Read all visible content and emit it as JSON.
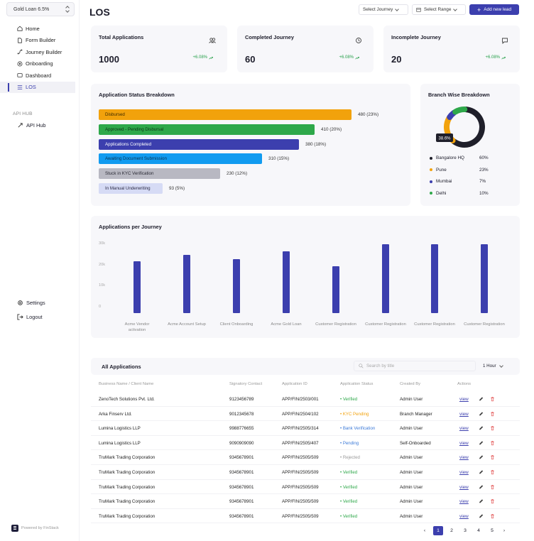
{
  "sidebar": {
    "loan_selector": "Gold Loan 6.5%",
    "nav": [
      {
        "label": "Home",
        "icon": "home-icon"
      },
      {
        "label": "Form Builder",
        "icon": "file-icon"
      },
      {
        "label": "Journey Builder",
        "icon": "route-icon"
      },
      {
        "label": "Onboarding",
        "icon": "onboarding-icon"
      },
      {
        "label": "Dashboard",
        "icon": "dashboard-icon"
      },
      {
        "label": "LOS",
        "icon": "list-icon",
        "active": true
      }
    ],
    "api_hub_heading": "API HUB",
    "api_hub_item": "API Hub",
    "settings": "Settings",
    "logout": "Logout",
    "powered_by": "Powered by FinStack"
  },
  "header": {
    "title": "LOS",
    "select_journey": "Select Journey",
    "select_range": "Select Range",
    "add_lead": "Add new lead"
  },
  "stats": [
    {
      "title": "Total Applications",
      "value": "1000",
      "change": "+6.08%"
    },
    {
      "title": "Completed Journey",
      "value": "60",
      "change": "+6.08%"
    },
    {
      "title": "Incomplete Journey",
      "value": "20",
      "change": "+6.08%"
    }
  ],
  "status_breakdown": {
    "title": "Application Status Breakdown",
    "items": [
      {
        "label": "Disbursed",
        "value": "480 (23%)",
        "count": 480,
        "color": "#f2a20c",
        "text_color": "#3b2a00"
      },
      {
        "label": "Approved - Pending Disbursal",
        "value": "410 (20%)",
        "count": 410,
        "color": "#2ea84a",
        "text_color": "#0c3316"
      },
      {
        "label": "Applications Completed",
        "value": "380 (18%)",
        "count": 380,
        "color": "#3c3fae",
        "text_color": "#ffffff"
      },
      {
        "label": "Awaiting Document Submission",
        "value": "310 (15%)",
        "count": 310,
        "color": "#119bf0",
        "text_color": "#08324f"
      },
      {
        "label": "Stuck in KYC Verification",
        "value": "230 (12%)",
        "count": 230,
        "color": "#b8b8c2",
        "text_color": "#2a2a35"
      },
      {
        "label": "In Manual Underwriting",
        "value": "93 (5%)",
        "count": 93,
        "color": "#d6dbf5",
        "text_color": "#2a2a45"
      }
    ]
  },
  "branch": {
    "title": "Branch Wise Breakdown",
    "callout": "38.6%",
    "items": [
      {
        "label": "Bangalore HQ",
        "pct": "60%",
        "share": 60,
        "color": "#1f1f2a"
      },
      {
        "label": "Pune",
        "pct": "23%",
        "share": 23,
        "color": "#f2a20c"
      },
      {
        "label": "Mumbai",
        "pct": "7%",
        "share": 7,
        "color": "#3c3fae"
      },
      {
        "label": "Delhi",
        "pct": "10%",
        "share": 10,
        "color": "#2ea84a"
      }
    ]
  },
  "chart_data": {
    "type": "bar",
    "title": "Applications per Journey",
    "categories": [
      "Acme Vendor activation",
      "Acme Account Setup",
      "Client Onboarding",
      "Acme Gold Loan",
      "Customer Registration",
      "Customer Registration",
      "Customer Registration",
      "Customer Registration"
    ],
    "values": [
      22500,
      25500,
      23500,
      27000,
      20500,
      30000,
      30000,
      30000
    ],
    "yticks": [
      "30k",
      "20k",
      "10k",
      "0"
    ],
    "ylim": [
      0,
      30000
    ],
    "grid": false,
    "color": "#3c3fae"
  },
  "table": {
    "title": "All Applications",
    "search_placeholder": "Search by title",
    "range": "1 Hour",
    "columns": [
      "Business Name / Client Name",
      "Signatory Contact",
      "Application ID",
      "Application Status",
      "Created By",
      "Actions"
    ],
    "view_label": "view",
    "rows": [
      {
        "name": "ZenoTech Solutions Pvt. Ltd.",
        "contact": "9123456789",
        "id": "APP/FIN/2503/001",
        "status": "Verified",
        "status_color": "#2ea84a",
        "created_by": "Admin User"
      },
      {
        "name": "Arka Finserv Ltd.",
        "contact": "9012345678",
        "id": "APP/FIN/2504/102",
        "status": "KYC Pending",
        "status_color": "#f2a20c",
        "created_by": "Branch Manager"
      },
      {
        "name": "Lumina Logistics LLP",
        "contact": "9988776655",
        "id": "APP/FIN/2505/314",
        "status": "Bank Verification",
        "status_color": "#3c7ad8",
        "created_by": "Admin User"
      },
      {
        "name": "Lumina Logistics LLP",
        "contact": "9090909090",
        "id": "APP/FIN/2505/407",
        "status": "Pending",
        "status_color": "#3c7ad8",
        "created_by": "Self-Onboarded"
      },
      {
        "name": "TruMark Trading Corporation",
        "contact": "9345678901",
        "id": "APP/FIN/2505/509",
        "status": "Rejected",
        "status_color": "#999999",
        "created_by": "Admin User"
      },
      {
        "name": "TruMark Trading Corporation",
        "contact": "9345678901",
        "id": "APP/FIN/2505/509",
        "status": "Verified",
        "status_color": "#2ea84a",
        "created_by": "Admin User"
      },
      {
        "name": "TruMark Trading Corporation",
        "contact": "9345678901",
        "id": "APP/FIN/2505/509",
        "status": "Verified",
        "status_color": "#2ea84a",
        "created_by": "Admin User"
      },
      {
        "name": "TruMark Trading Corporation",
        "contact": "9345678901",
        "id": "APP/FIN/2505/509",
        "status": "Verified",
        "status_color": "#2ea84a",
        "created_by": "Admin User"
      },
      {
        "name": "TruMark Trading Corporation",
        "contact": "9345678901",
        "id": "APP/FIN/2505/509",
        "status": "Verified",
        "status_color": "#2ea84a",
        "created_by": "Admin User"
      }
    ]
  },
  "pagination": {
    "pages": [
      "1",
      "2",
      "3",
      "4",
      "5"
    ],
    "current": "1",
    "prev": "‹",
    "next": "›"
  }
}
